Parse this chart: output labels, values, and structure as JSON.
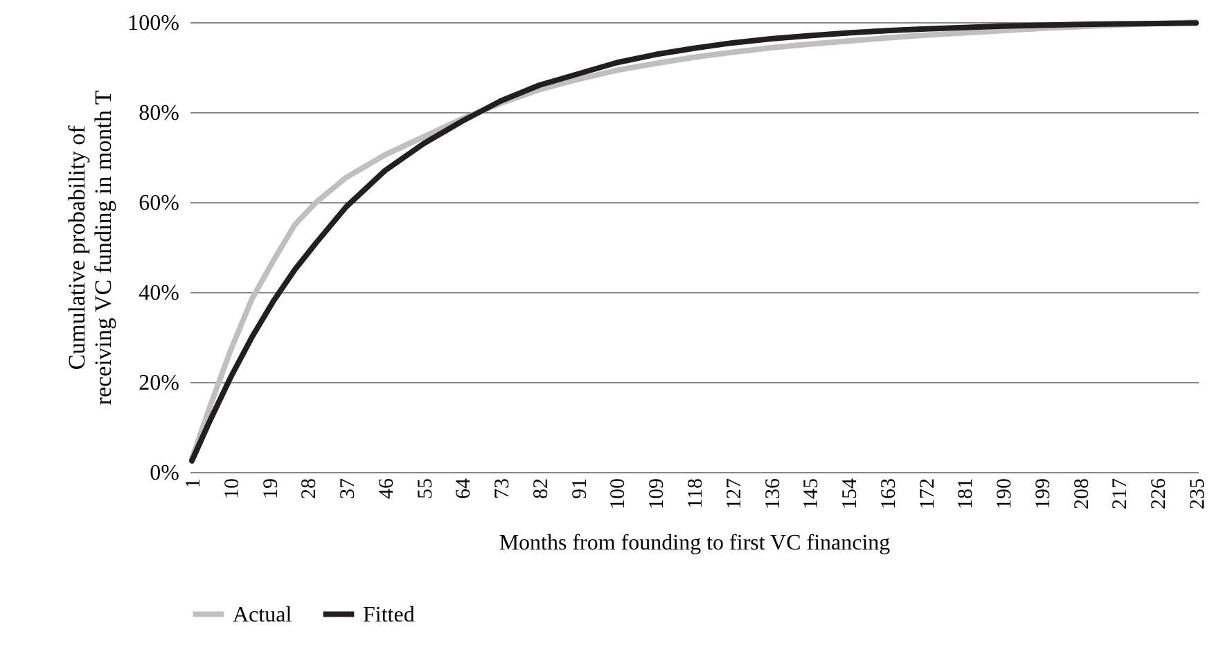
{
  "chart_data": {
    "type": "line",
    "xlabel": "Months from founding to first VC financing",
    "ylabel": "Cumulative probability of receiving VC funding in month T",
    "x": [
      1,
      5,
      10,
      15,
      20,
      25,
      30,
      37,
      46,
      55,
      64,
      73,
      82,
      91,
      100,
      109,
      118,
      127,
      136,
      145,
      154,
      163,
      172,
      181,
      190,
      199,
      208,
      217,
      226,
      235
    ],
    "xlim": [
      0.5,
      235.5
    ],
    "xticks": [
      1,
      10,
      19,
      28,
      37,
      46,
      55,
      64,
      73,
      82,
      91,
      100,
      109,
      118,
      127,
      136,
      145,
      154,
      163,
      172,
      181,
      190,
      199,
      208,
      217,
      226,
      235
    ],
    "ylim": [
      0,
      100
    ],
    "yticks": [
      {
        "value": 0,
        "label": "0%"
      },
      {
        "value": 20,
        "label": "20%"
      },
      {
        "value": 40,
        "label": "40%"
      },
      {
        "value": 60,
        "label": "60%"
      },
      {
        "value": 80,
        "label": "80%"
      },
      {
        "value": 100,
        "label": "100%"
      }
    ],
    "series": [
      {
        "name": "Actual",
        "color": "#bfbfbf",
        "values": [
          3,
          14,
          27,
          38.5,
          47,
          55,
          60,
          65.5,
          70.5,
          74.5,
          78.5,
          82,
          85,
          87.3,
          89.3,
          90.8,
          92.2,
          93.3,
          94.3,
          95.1,
          95.8,
          96.5,
          97.1,
          97.6,
          98.1,
          98.6,
          99,
          99.4,
          99.7,
          100
        ]
      },
      {
        "name": "Fitted",
        "color": "#231f20",
        "values": [
          2.5,
          11,
          21,
          30,
          38,
          45,
          51,
          59,
          67,
          73,
          78,
          82.5,
          86,
          88.5,
          91,
          92.8,
          94.2,
          95.4,
          96.3,
          97,
          97.6,
          98.1,
          98.5,
          98.8,
          99.1,
          99.3,
          99.5,
          99.6,
          99.7,
          99.8
        ]
      }
    ],
    "grid": "y",
    "legend": "bottom",
    "line_style": "solid"
  }
}
